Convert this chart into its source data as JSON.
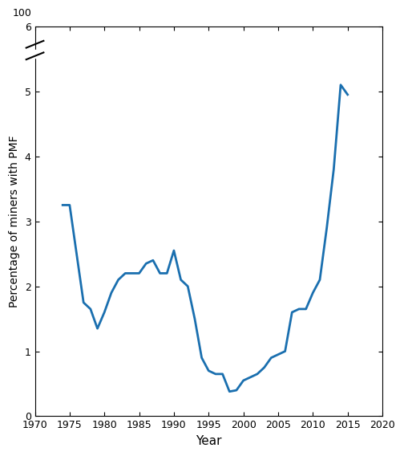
{
  "years": [
    1974,
    1975,
    1976,
    1977,
    1978,
    1979,
    1980,
    1981,
    1982,
    1983,
    1984,
    1985,
    1986,
    1987,
    1988,
    1989,
    1990,
    1991,
    1992,
    1993,
    1994,
    1995,
    1996,
    1997,
    1998,
    1999,
    2000,
    2001,
    2002,
    2003,
    2004,
    2005,
    2006,
    2007,
    2008,
    2009,
    2010,
    2011,
    2012,
    2013,
    2014,
    2015
  ],
  "values": [
    3.25,
    3.25,
    2.5,
    1.75,
    1.65,
    1.35,
    1.6,
    1.9,
    2.1,
    2.2,
    2.2,
    2.2,
    2.35,
    2.4,
    2.2,
    2.2,
    2.55,
    2.1,
    2.0,
    1.5,
    0.9,
    0.7,
    0.65,
    0.65,
    0.38,
    0.4,
    0.55,
    0.6,
    0.65,
    0.75,
    0.9,
    0.95,
    1.0,
    1.6,
    1.65,
    1.65,
    1.9,
    2.1,
    2.9,
    3.8,
    5.1,
    4.95
  ],
  "line_color": "#1a6faf",
  "line_width": 2.0,
  "xlabel": "Year",
  "ylabel": "Percentage of miners with PMF",
  "xlim": [
    1970,
    2020
  ],
  "ylim": [
    0,
    6
  ],
  "yticks": [
    0,
    1,
    2,
    3,
    4,
    5,
    6
  ],
  "xticks": [
    1970,
    1975,
    1980,
    1985,
    1990,
    1995,
    2000,
    2005,
    2010,
    2015,
    2020
  ],
  "xlabel_fontsize": 11,
  "ylabel_fontsize": 10,
  "tick_fontsize": 9
}
